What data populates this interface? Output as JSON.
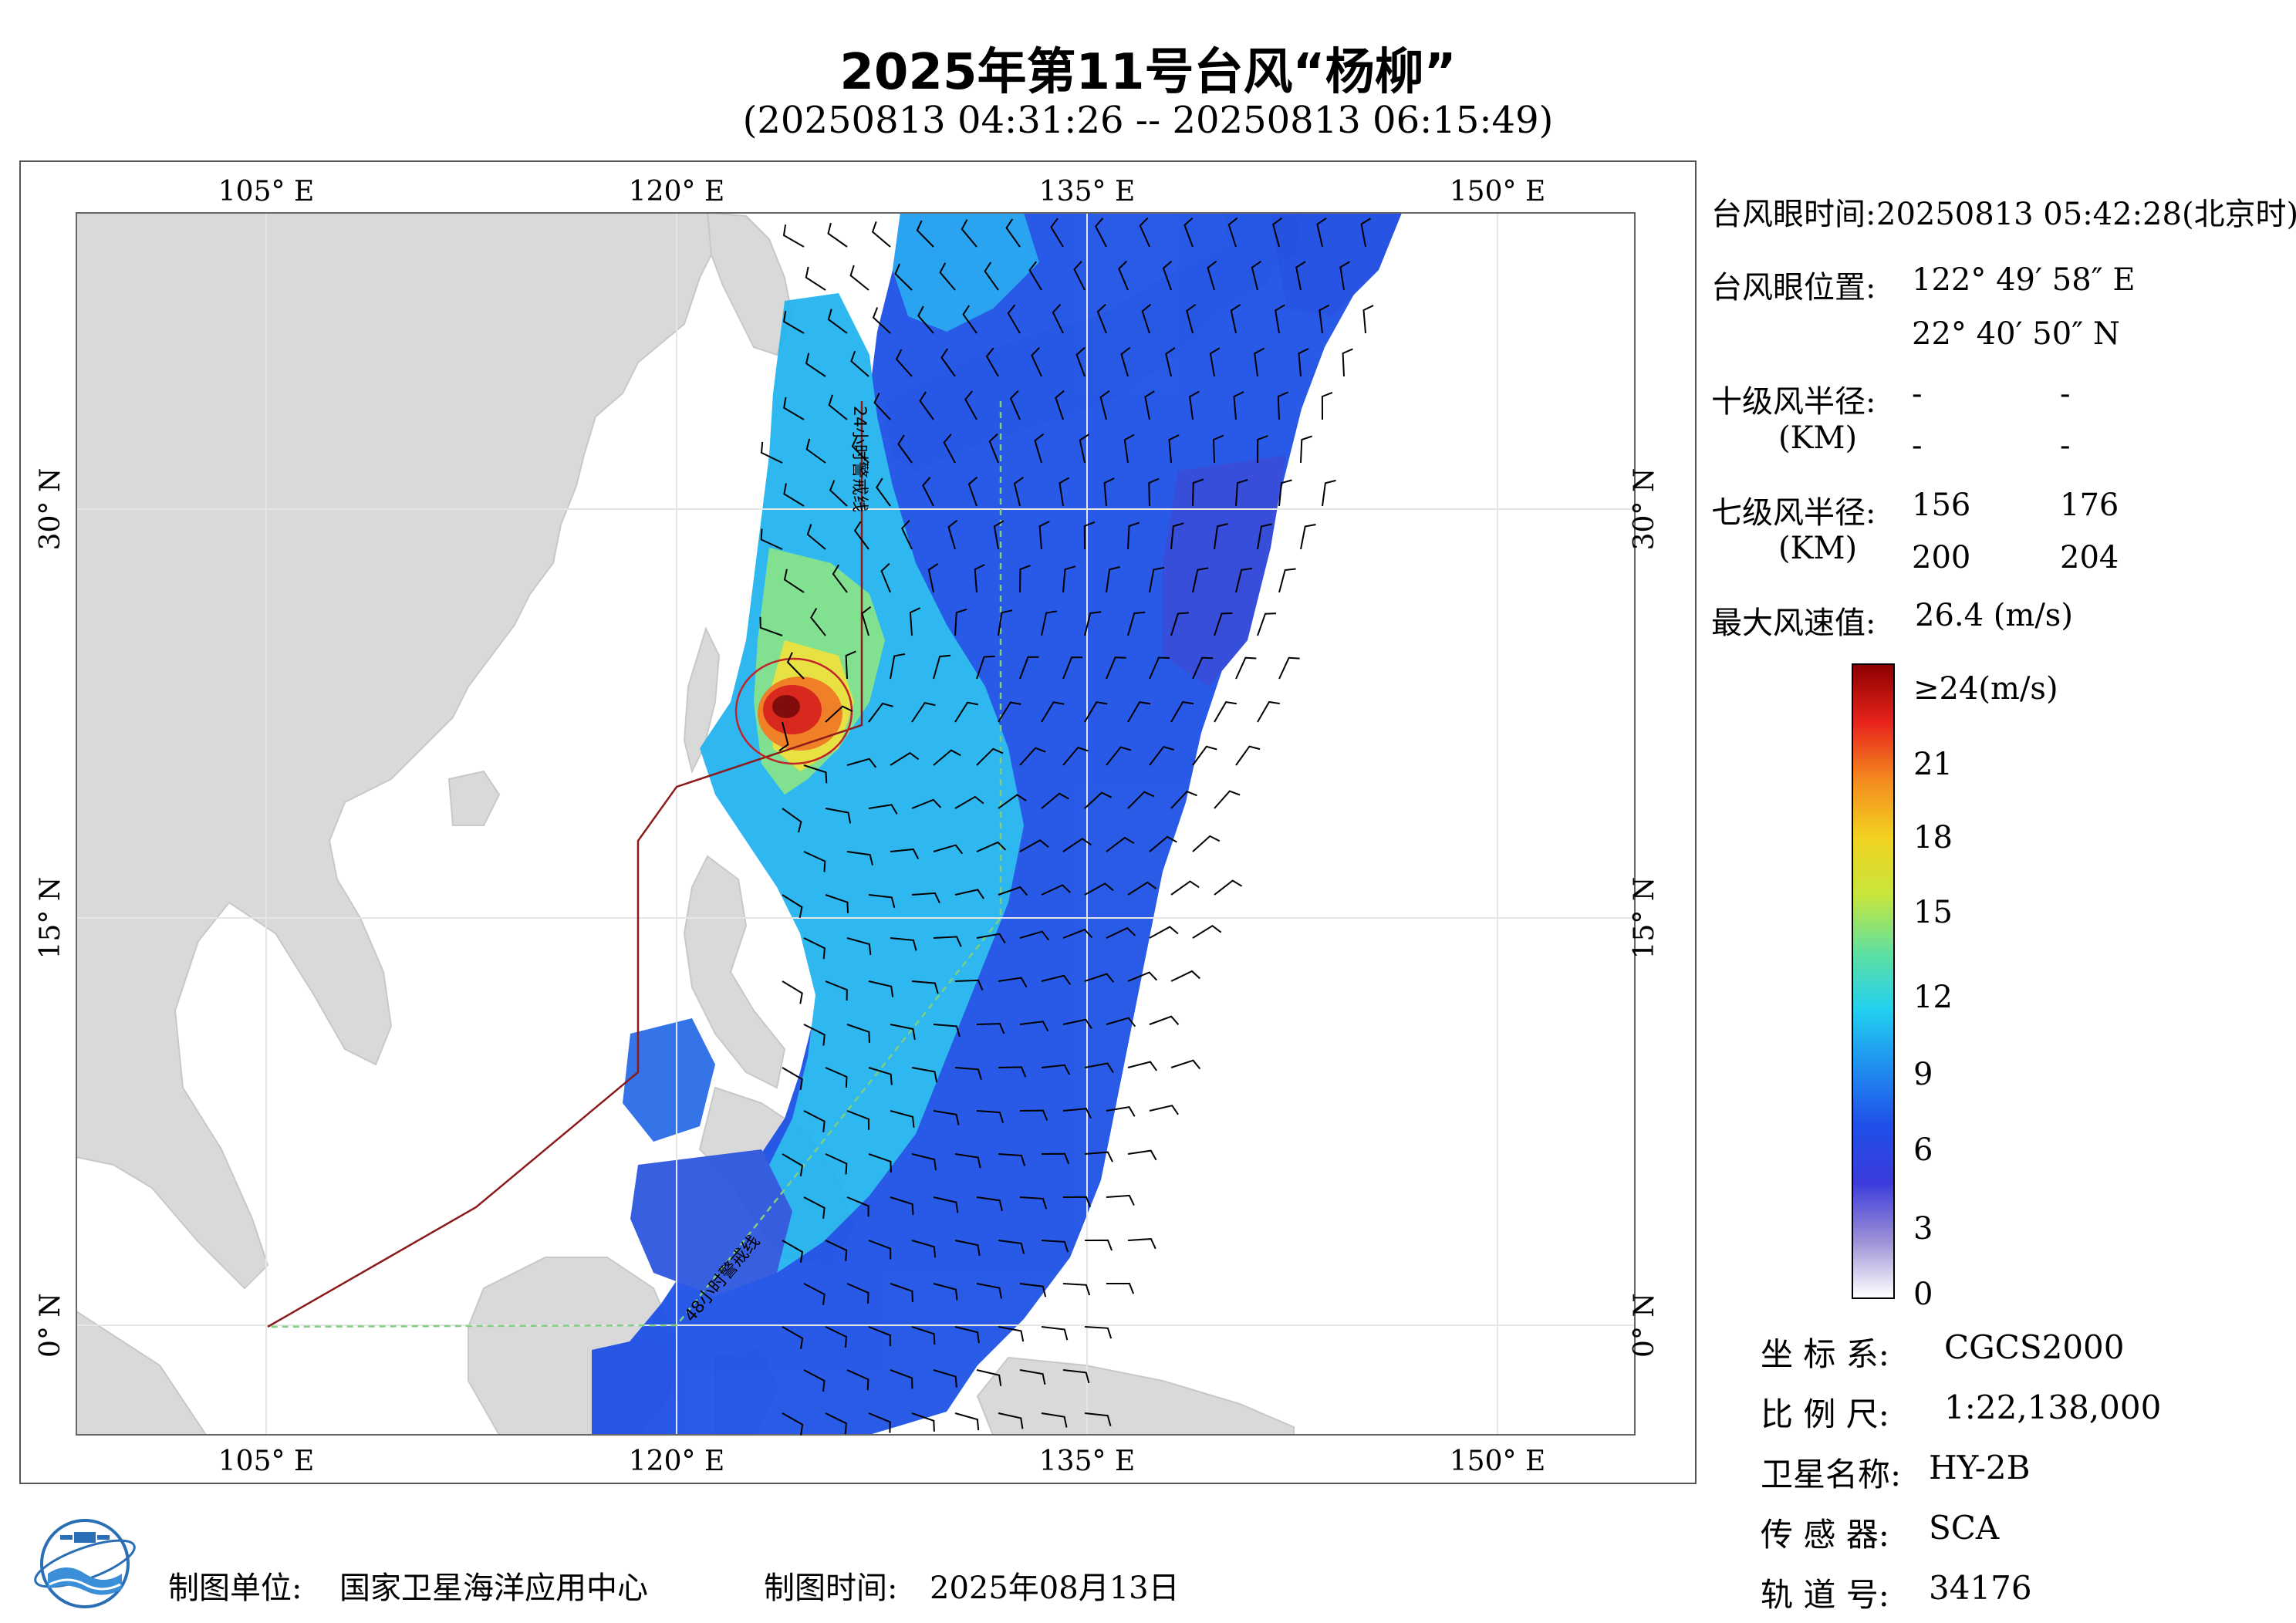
{
  "header": {
    "title": "2025年第11号台风“杨柳”",
    "subtitle": "(20250813 04:31:26 -- 20250813 06:15:49)"
  },
  "map": {
    "lon_ticks": [
      "105° E",
      "120° E",
      "135° E",
      "150° E"
    ],
    "lat_ticks": [
      "30° N",
      "15° N",
      "0° N"
    ],
    "warning_24h": "24小时警戒线",
    "warning_48h": "48小时警戒线"
  },
  "info": {
    "eye_time_label": "台风眼时间:",
    "eye_time_value": "20250813 05:42:28(北京时)",
    "eye_pos_label": "台风眼位置:",
    "eye_lon": "122° 49′ 58″ E",
    "eye_lat": "22° 40′ 50″ N",
    "r10_label": "十级风半径:",
    "r10_unit": "(KM)",
    "r10_values": [
      "-",
      "-",
      "-",
      "-"
    ],
    "r7_label": "七级风半径:",
    "r7_unit": "(KM)",
    "r7_values": [
      "156",
      "176",
      "200",
      "204"
    ],
    "max_wind_label": "最大风速值:",
    "max_wind_value": "26.4  (m/s)"
  },
  "colorbar": {
    "labels": [
      "≥24(m/s)",
      "21",
      "18",
      "15",
      "12",
      "9",
      "6",
      "3",
      "0"
    ],
    "colors": [
      "#ffffff",
      "#9b8fd6",
      "#3b3bdc",
      "#1f4fe8",
      "#1f8ef0",
      "#22d0f0",
      "#5fe0a0",
      "#c8e63c",
      "#f2d21f",
      "#f48a1f",
      "#e8231c",
      "#8c0000"
    ]
  },
  "meta": {
    "crs_label": "坐 标 系:",
    "crs_value": "CGCS2000",
    "scale_label": "比 例 尺:",
    "scale_value": "1:22,138,000",
    "satellite_label": "卫星名称:",
    "satellite_value": "HY-2B",
    "sensor_label": "传 感 器:",
    "sensor_value": "SCA",
    "orbit_label": "轨 道 号:",
    "orbit_value": "34176"
  },
  "footer": {
    "producer_label": "制图单位:",
    "producer_value": "国家卫星海洋应用中心",
    "date_label": "制图时间:",
    "date_value": "2025年08月13日"
  }
}
